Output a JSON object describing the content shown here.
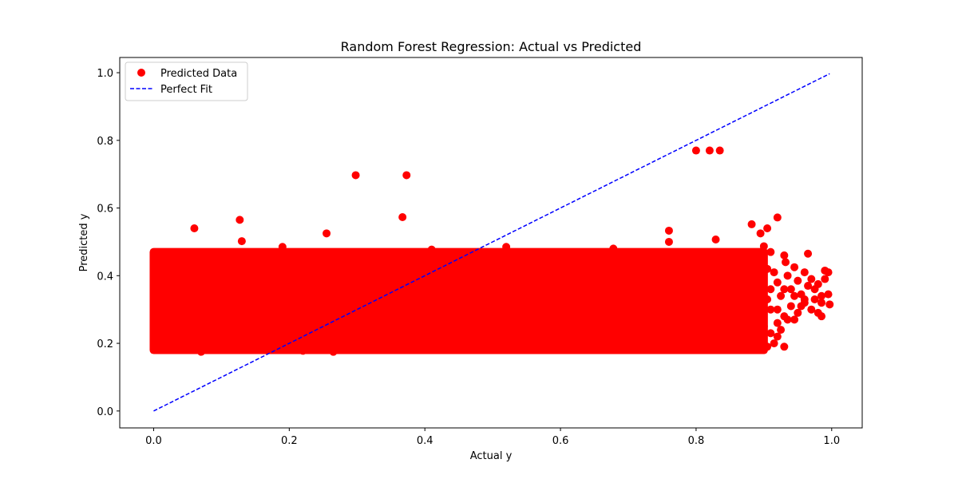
{
  "chart_data": {
    "type": "scatter",
    "title": "Random Forest Regression: Actual vs Predicted",
    "xlabel": "Actual y",
    "ylabel": "Predicted y",
    "xlim": [
      -0.05,
      1.045
    ],
    "ylim": [
      -0.05,
      1.045
    ],
    "xticks": [
      0.0,
      0.2,
      0.4,
      0.6,
      0.8,
      1.0
    ],
    "xtick_labels": [
      "0.0",
      "0.2",
      "0.4",
      "0.6",
      "0.8",
      "1.0"
    ],
    "yticks": [
      0.0,
      0.2,
      0.4,
      0.6,
      0.8,
      1.0
    ],
    "ytick_labels": [
      "0.0",
      "0.2",
      "0.4",
      "0.6",
      "0.8",
      "1.0"
    ],
    "grid": false,
    "legend_position": "top-left",
    "series": [
      {
        "name": "Predicted Data",
        "kind": "scatter",
        "color": "#ff0000",
        "dense_region": {
          "x": [
            0.0,
            0.9
          ],
          "y": [
            0.18,
            0.47
          ]
        },
        "points": [
          [
            0.005,
            0.43
          ],
          [
            0.003,
            0.36
          ],
          [
            0.002,
            0.19
          ],
          [
            0.004,
            0.26
          ],
          [
            0.06,
            0.54
          ],
          [
            0.127,
            0.565
          ],
          [
            0.13,
            0.502
          ],
          [
            0.19,
            0.485
          ],
          [
            0.255,
            0.525
          ],
          [
            0.298,
            0.697
          ],
          [
            0.367,
            0.573
          ],
          [
            0.373,
            0.697
          ],
          [
            0.52,
            0.485
          ],
          [
            0.41,
            0.477
          ],
          [
            0.678,
            0.48
          ],
          [
            0.76,
            0.533
          ],
          [
            0.76,
            0.5
          ],
          [
            0.8,
            0.77
          ],
          [
            0.82,
            0.77
          ],
          [
            0.835,
            0.77
          ],
          [
            0.829,
            0.507
          ],
          [
            0.882,
            0.552
          ],
          [
            0.895,
            0.525
          ],
          [
            0.905,
            0.54
          ],
          [
            0.92,
            0.572
          ],
          [
            0.9,
            0.487
          ],
          [
            0.91,
            0.47
          ],
          [
            0.905,
            0.42
          ],
          [
            0.915,
            0.41
          ],
          [
            0.93,
            0.46
          ],
          [
            0.932,
            0.44
          ],
          [
            0.945,
            0.425
          ],
          [
            0.935,
            0.4
          ],
          [
            0.95,
            0.385
          ],
          [
            0.96,
            0.41
          ],
          [
            0.965,
            0.465
          ],
          [
            0.97,
            0.39
          ],
          [
            0.975,
            0.36
          ],
          [
            0.98,
            0.375
          ],
          [
            0.985,
            0.34
          ],
          [
            0.99,
            0.415
          ],
          [
            0.995,
            0.41
          ],
          [
            0.995,
            0.345
          ],
          [
            0.997,
            0.315
          ],
          [
            0.98,
            0.29
          ],
          [
            0.97,
            0.3
          ],
          [
            0.96,
            0.32
          ],
          [
            0.955,
            0.345
          ],
          [
            0.945,
            0.34
          ],
          [
            0.94,
            0.31
          ],
          [
            0.93,
            0.28
          ],
          [
            0.92,
            0.26
          ],
          [
            0.91,
            0.3
          ],
          [
            0.905,
            0.33
          ],
          [
            0.91,
            0.36
          ],
          [
            0.92,
            0.38
          ],
          [
            0.925,
            0.34
          ],
          [
            0.93,
            0.36
          ],
          [
            0.94,
            0.36
          ],
          [
            0.95,
            0.29
          ],
          [
            0.965,
            0.37
          ],
          [
            0.975,
            0.33
          ],
          [
            0.985,
            0.32
          ],
          [
            0.91,
            0.23
          ],
          [
            0.915,
            0.2
          ],
          [
            0.905,
            0.19
          ],
          [
            0.92,
            0.22
          ],
          [
            0.93,
            0.19
          ],
          [
            0.925,
            0.24
          ],
          [
            0.935,
            0.27
          ],
          [
            0.92,
            0.3
          ],
          [
            0.9,
            0.18
          ],
          [
            0.9,
            0.25
          ],
          [
            0.96,
            0.33
          ],
          [
            0.99,
            0.39
          ],
          [
            0.985,
            0.28
          ],
          [
            0.955,
            0.31
          ],
          [
            0.945,
            0.27
          ],
          [
            0.07,
            0.175
          ],
          [
            0.22,
            0.178
          ],
          [
            0.265,
            0.175
          ]
        ]
      },
      {
        "name": "Perfect Fit",
        "kind": "line",
        "color": "#0000ff",
        "dash": "dashed",
        "x": [
          0.0,
          0.997
        ],
        "y": [
          0.0,
          0.997
        ]
      }
    ]
  }
}
